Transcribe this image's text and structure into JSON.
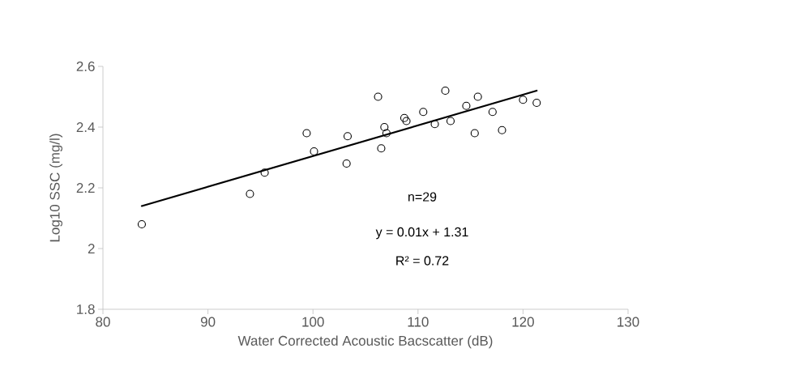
{
  "chart_data": {
    "type": "scatter",
    "xlabel": "Water Corrected Acoustic Bacscatter (dB)",
    "ylabel": "Log10 SSC (mg/l)",
    "xlim": [
      80,
      130
    ],
    "ylim": [
      1.8,
      2.6
    ],
    "xticks": [
      80,
      90,
      100,
      110,
      120,
      130
    ],
    "yticks": [
      1.8,
      2,
      2.2,
      2.4,
      2.6
    ],
    "grid": false,
    "annotations": [
      "n=29",
      "y = 0.01x + 1.31",
      "R² = 0.72"
    ],
    "series": [
      {
        "marker": "circle",
        "color": "#000000",
        "x": [
          83.7,
          94.0,
          95.4,
          99.4,
          100.1,
          103.2,
          103.3,
          106.2,
          106.5,
          106.8,
          107.0,
          108.7,
          108.9,
          110.5,
          111.6,
          112.6,
          113.1,
          114.6,
          115.4,
          115.7,
          117.1,
          118.0,
          120.0,
          121.3
        ],
        "values": [
          2.08,
          2.18,
          2.25,
          2.38,
          2.32,
          2.28,
          2.37,
          2.5,
          2.33,
          2.4,
          2.38,
          2.43,
          2.42,
          2.45,
          2.41,
          2.52,
          2.42,
          2.47,
          2.38,
          2.5,
          2.45,
          2.39,
          2.49,
          2.48
        ]
      },
      {
        "type": "line",
        "marker": "none",
        "line_style": "solid",
        "color": "#000000",
        "x": [
          83.7,
          121.3
        ],
        "values": [
          2.14,
          2.52
        ]
      }
    ]
  }
}
